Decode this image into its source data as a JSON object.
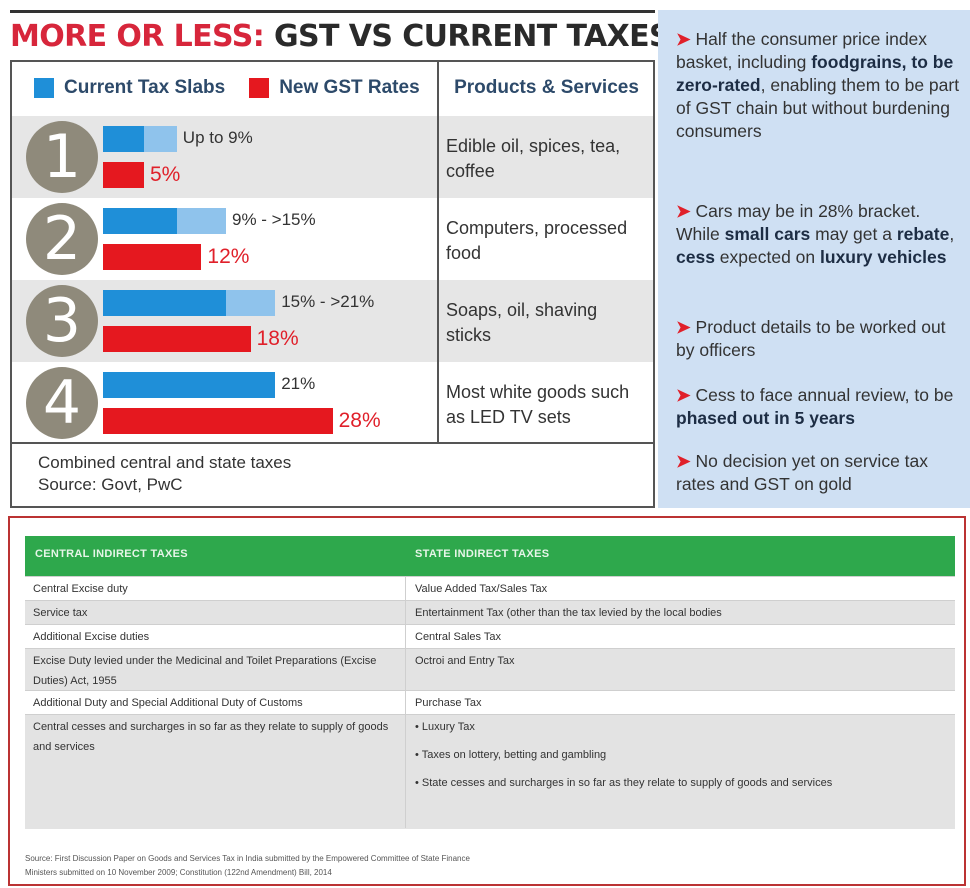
{
  "title": {
    "lead": "MORE OR LESS:",
    "rest": "GST VS CURRENT TAXES"
  },
  "legend": {
    "current": {
      "label": "Current Tax Slabs",
      "color": "#1f8fd8"
    },
    "gst": {
      "label": "New GST Rates",
      "color": "#e5181f"
    },
    "light_color": "#8fc3ec"
  },
  "products_header": "Products & Services",
  "chart_data": {
    "type": "bar",
    "title": "MORE OR LESS: GST VS CURRENT TAXES",
    "categories": [
      "1",
      "2",
      "3",
      "4"
    ],
    "series": [
      {
        "name": "Current Tax Slabs",
        "values": [
          9,
          15,
          21,
          21
        ],
        "range_low": [
          5,
          9,
          15,
          21
        ],
        "labels": [
          "Up to 9%",
          "9% - >15%",
          "15% - >21%",
          "21%"
        ]
      },
      {
        "name": "New GST Rates",
        "values": [
          5,
          12,
          18,
          28
        ],
        "labels": [
          "5%",
          "12%",
          "18%",
          "28%"
        ]
      }
    ],
    "products": [
      "Edible oil, spices, tea, coffee",
      "Computers, processed food",
      "Soaps, oil, shaving sticks",
      "Most white goods such as LED TV sets"
    ]
  },
  "note": [
    "Combined central and state taxes",
    "Source: Govt, PwC"
  ],
  "bullets": [
    {
      "a": "Half the consumer price index basket, including ",
      "b": "foodgrains, to be zero-rated",
      "c": ", enabling them to be part of GST chain but without burdening consumers"
    },
    {
      "a": "Cars may be in 28% bracket. While ",
      "b": "small cars",
      "c": " may get a ",
      "d": "rebate",
      "e": ", ",
      "f": "cess",
      "g": " expected on ",
      "h": "luxury vehicles"
    },
    {
      "a": "Product details to be worked out by officers"
    },
    {
      "a": "Cess to face annual review, to be ",
      "b": "phased out in 5 years"
    },
    {
      "a": "No decision yet on service tax rates and GST on gold"
    }
  ],
  "table": {
    "headers": [
      "CENTRAL INDIRECT TAXES",
      "STATE INDIRECT TAXES"
    ],
    "rows": [
      {
        "central": "Central Excise duty",
        "state": "Value Added Tax/Sales Tax"
      },
      {
        "central": "Service tax",
        "state": "Entertainment Tax (other than the tax levied by the local bodies"
      },
      {
        "central": "Additional Excise duties",
        "state": "Central Sales Tax"
      },
      {
        "central": "Excise Duty levied under the Medicinal and Toilet Preparations (Excise Duties) Act, 1955",
        "state": "Octroi and Entry Tax"
      },
      {
        "central": "Additional Duty and Special Additional Duty of Customs",
        "state": "Purchase Tax"
      },
      {
        "central": "Central cesses and surcharges in so far as they relate to supply of goods and services",
        "state_list": [
          "• Luxury Tax",
          "• Taxes on lottery, betting and gambling",
          "• State cesses and surcharges in so far as they relate to supply of goods and services"
        ]
      }
    ],
    "source": [
      "Source: First Discussion Paper on Goods and Services Tax in India submitted by the Empowered Committee of State Finance",
      "Ministers submitted on 10 November 2009; Constitution (122nd Amendment) Bill, 2014"
    ]
  }
}
